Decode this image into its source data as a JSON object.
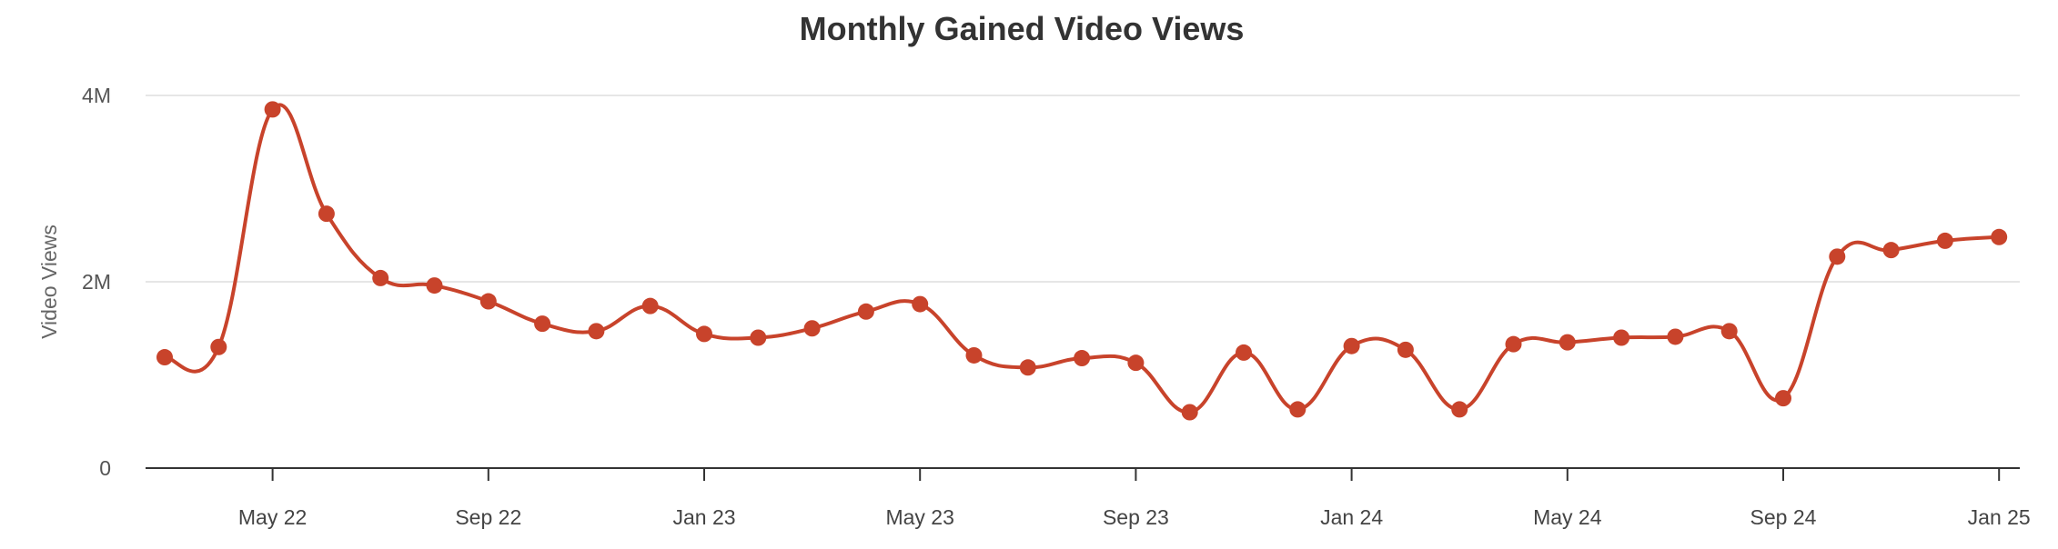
{
  "chart_data": {
    "type": "line",
    "title": "Monthly Gained Video Views",
    "xlabel": "",
    "ylabel": "Video Views",
    "ylim": [
      0,
      4000000
    ],
    "y_ticks": [
      {
        "value": 0,
        "label": "0"
      },
      {
        "value": 2000000,
        "label": "2M"
      },
      {
        "value": 4000000,
        "label": "4M"
      }
    ],
    "x_ticks": [
      {
        "index": 2,
        "label": "May 22"
      },
      {
        "index": 6,
        "label": "Sep 22"
      },
      {
        "index": 10,
        "label": "Jan 23"
      },
      {
        "index": 14,
        "label": "May 23"
      },
      {
        "index": 18,
        "label": "Sep 23"
      },
      {
        "index": 22,
        "label": "Jan 24"
      },
      {
        "index": 26,
        "label": "May 24"
      },
      {
        "index": 30,
        "label": "Sep 24"
      },
      {
        "index": 34,
        "label": "Jan 25"
      }
    ],
    "grid": true,
    "legend": "none",
    "categories": [
      "Mar 22",
      "Apr 22",
      "May 22",
      "Jun 22",
      "Jul 22",
      "Aug 22",
      "Sep 22",
      "Oct 22",
      "Nov 22",
      "Dec 22",
      "Jan 23",
      "Feb 23",
      "Mar 23",
      "Apr 23",
      "May 23",
      "Jun 23",
      "Jul 23",
      "Aug 23",
      "Sep 23",
      "Oct 23",
      "Nov 23",
      "Dec 23",
      "Jan 24",
      "Feb 24",
      "Mar 24",
      "Apr 24",
      "May 24",
      "Jun 24",
      "Jul 24",
      "Aug 24",
      "Sep 24",
      "Oct 24",
      "Nov 24",
      "Dec 24",
      "Jan 25"
    ],
    "series": [
      {
        "values": [
          1190000,
          1300000,
          3850000,
          2730000,
          2040000,
          1960000,
          1790000,
          1550000,
          1470000,
          1740000,
          1440000,
          1400000,
          1500000,
          1680000,
          1760000,
          1210000,
          1080000,
          1180000,
          1130000,
          600000,
          1240000,
          630000,
          1310000,
          1270000,
          630000,
          1330000,
          1350000,
          1400000,
          1410000,
          1470000,
          750000,
          2270000,
          2340000,
          2440000,
          2480000
        ]
      }
    ],
    "colors": {
      "line": "#c8432b",
      "grid": "#e6e6e6",
      "axis": "#333333"
    }
  }
}
